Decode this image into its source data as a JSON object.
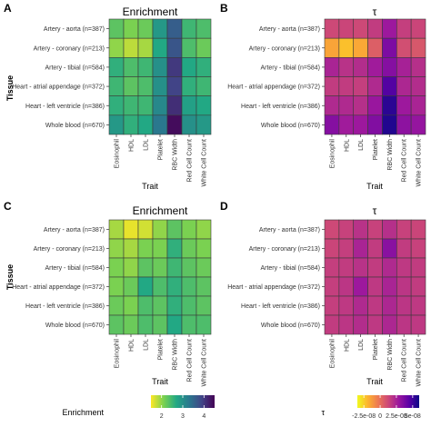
{
  "panels": [
    {
      "letter": "A",
      "title": "Enrichment",
      "ylabel": "Tissue",
      "xlabel": "Trait",
      "scale": "enrichment",
      "variant": 0
    },
    {
      "letter": "B",
      "title": "τ",
      "ylabel": "",
      "xlabel": "Trait",
      "scale": "tau",
      "variant": 0
    },
    {
      "letter": "C",
      "title": "Enrichment",
      "ylabel": "Tissue",
      "xlabel": "Trait",
      "scale": "enrichment",
      "variant": 1
    },
    {
      "letter": "D",
      "title": "τ",
      "ylabel": "",
      "xlabel": "Trait",
      "scale": "tau",
      "variant": 1
    }
  ],
  "legends": {
    "enrichment": {
      "title": "Enrichment",
      "ticks": [
        "2",
        "3",
        "4"
      ],
      "colors": [
        "#FDE725",
        "#7AD151",
        "#22A884",
        "#2A788E",
        "#414487",
        "#440154"
      ]
    },
    "tau": {
      "title": "τ",
      "ticks": [
        "-2.5e-08",
        "0",
        "2.5e-08",
        "5e-08"
      ],
      "colors": [
        "#F0F921",
        "#FDB42F",
        "#ED7953",
        "#CC4778",
        "#9C179E",
        "#5C01A6",
        "#0D0887"
      ]
    }
  },
  "chart_data": [
    {
      "panel": "A",
      "type": "heatmap",
      "title": "Enrichment",
      "xlabel": "Trait",
      "ylabel": "Tissue",
      "x": [
        "Eosinophil",
        "HDL",
        "LDL",
        "Platelet",
        "RBC Width",
        "Red Cell Count",
        "White Cell Count"
      ],
      "y": [
        "Artery - aorta (n=387)",
        "Artery - coronary (n=213)",
        "Artery - tibial (n=584)",
        "Heart - atrial appendage (n=372)",
        "Heart - left ventricle (n=386)",
        "Whole blood (n=670)"
      ],
      "values": [
        [
          2.3,
          2.1,
          2.2,
          2.9,
          3.6,
          2.5,
          2.4
        ],
        [
          2.0,
          1.8,
          1.9,
          2.7,
          3.7,
          2.4,
          2.2
        ],
        [
          2.6,
          2.4,
          2.5,
          3.0,
          4.0,
          2.7,
          2.6
        ],
        [
          2.5,
          2.3,
          2.4,
          3.0,
          3.9,
          2.6,
          2.5
        ],
        [
          2.6,
          2.5,
          2.5,
          3.1,
          4.1,
          2.8,
          2.7
        ],
        [
          2.9,
          2.6,
          2.7,
          3.3,
          4.4,
          3.0,
          2.9
        ]
      ]
    },
    {
      "panel": "B",
      "type": "heatmap",
      "title": "τ",
      "xlabel": "Trait",
      "ylabel": "",
      "x": [
        "Eosinophil",
        "HDL",
        "LDL",
        "Platelet",
        "RBC Width",
        "Red Cell Count",
        "White Cell Count"
      ],
      "y": [
        "Artery - aorta (n=387)",
        "Artery - coronary (n=213)",
        "Artery - tibial (n=584)",
        "Heart - atrial appendage (n=372)",
        "Heart - left ventricle (n=386)",
        "Whole blood (n=670)"
      ],
      "values": [
        [
          1.2e-08,
          1.3e-08,
          1.2e-08,
          1.6e-08,
          2.8e-08,
          1.5e-08,
          1.3e-08
        ],
        [
          -1.5e-08,
          -2.2e-08,
          -1.6e-08,
          5e-09,
          3.6e-08,
          1e-08,
          7e-09
        ],
        [
          2.4e-08,
          1.9e-08,
          2.1e-08,
          2.7e-08,
          3.4e-08,
          2.5e-08,
          2e-08
        ],
        [
          1.6e-08,
          1.6e-08,
          1.5e-08,
          2.2e-08,
          4.6e-08,
          2.3e-08,
          2.1e-08
        ],
        [
          2.2e-08,
          2.2e-08,
          2e-08,
          2.9e-08,
          5.4e-08,
          2.8e-08,
          2.4e-08
        ],
        [
          3.4e-08,
          2.7e-08,
          2.8e-08,
          3.5e-08,
          5.6e-08,
          3.2e-08,
          3e-08
        ]
      ]
    },
    {
      "panel": "C",
      "type": "heatmap",
      "title": "Enrichment",
      "xlabel": "Trait",
      "ylabel": "Tissue",
      "x": [
        "Eosinophil",
        "HDL",
        "LDL",
        "Platelet",
        "RBC Width",
        "Red Cell Count",
        "White Cell Count"
      ],
      "y": [
        "Artery - aorta (n=387)",
        "Artery - coronary (n=213)",
        "Artery - tibial (n=584)",
        "Heart - atrial appendage (n=372)",
        "Heart - left ventricle (n=386)",
        "Whole blood (n=670)"
      ],
      "values": [
        [
          1.9,
          1.6,
          1.7,
          2.0,
          2.3,
          2.1,
          2.0
        ],
        [
          2.0,
          1.9,
          2.1,
          2.1,
          2.6,
          2.2,
          2.1
        ],
        [
          2.1,
          2.0,
          2.3,
          2.2,
          2.5,
          2.3,
          2.2
        ],
        [
          2.1,
          2.2,
          2.7,
          2.4,
          2.6,
          2.4,
          2.3
        ],
        [
          2.2,
          2.1,
          2.4,
          2.3,
          2.6,
          2.4,
          2.3
        ],
        [
          2.3,
          2.2,
          2.4,
          2.3,
          2.7,
          2.4,
          2.4
        ]
      ]
    },
    {
      "panel": "D",
      "type": "heatmap",
      "title": "τ",
      "xlabel": "Trait",
      "ylabel": "",
      "x": [
        "Eosinophil",
        "HDL",
        "LDL",
        "Platelet",
        "RBC Width",
        "Red Cell Count",
        "White Cell Count"
      ],
      "y": [
        "Artery - aorta (n=387)",
        "Artery - coronary (n=213)",
        "Artery - tibial (n=584)",
        "Heart - atrial appendage (n=372)",
        "Heart - left ventricle (n=386)",
        "Whole blood (n=670)"
      ],
      "values": [
        [
          1.2e-08,
          1.4e-08,
          1.9e-08,
          1.4e-08,
          2e-08,
          1.4e-08,
          1.3e-08
        ],
        [
          1.3e-08,
          1.5e-08,
          2.4e-08,
          1.6e-08,
          3.3e-08,
          1.6e-08,
          1.4e-08
        ],
        [
          1.5e-08,
          1.6e-08,
          1.9e-08,
          1.6e-08,
          2.2e-08,
          1.7e-08,
          1.6e-08
        ],
        [
          1.5e-08,
          1.8e-08,
          2.8e-08,
          1.7e-08,
          2.4e-08,
          1.8e-08,
          1.6e-08
        ],
        [
          1.5e-08,
          1.7e-08,
          2.2e-08,
          1.7e-08,
          2.3e-08,
          1.8e-08,
          1.7e-08
        ],
        [
          1.6e-08,
          1.8e-08,
          2.1e-08,
          1.7e-08,
          2.3e-08,
          1.8e-08,
          1.7e-08
        ]
      ]
    }
  ]
}
